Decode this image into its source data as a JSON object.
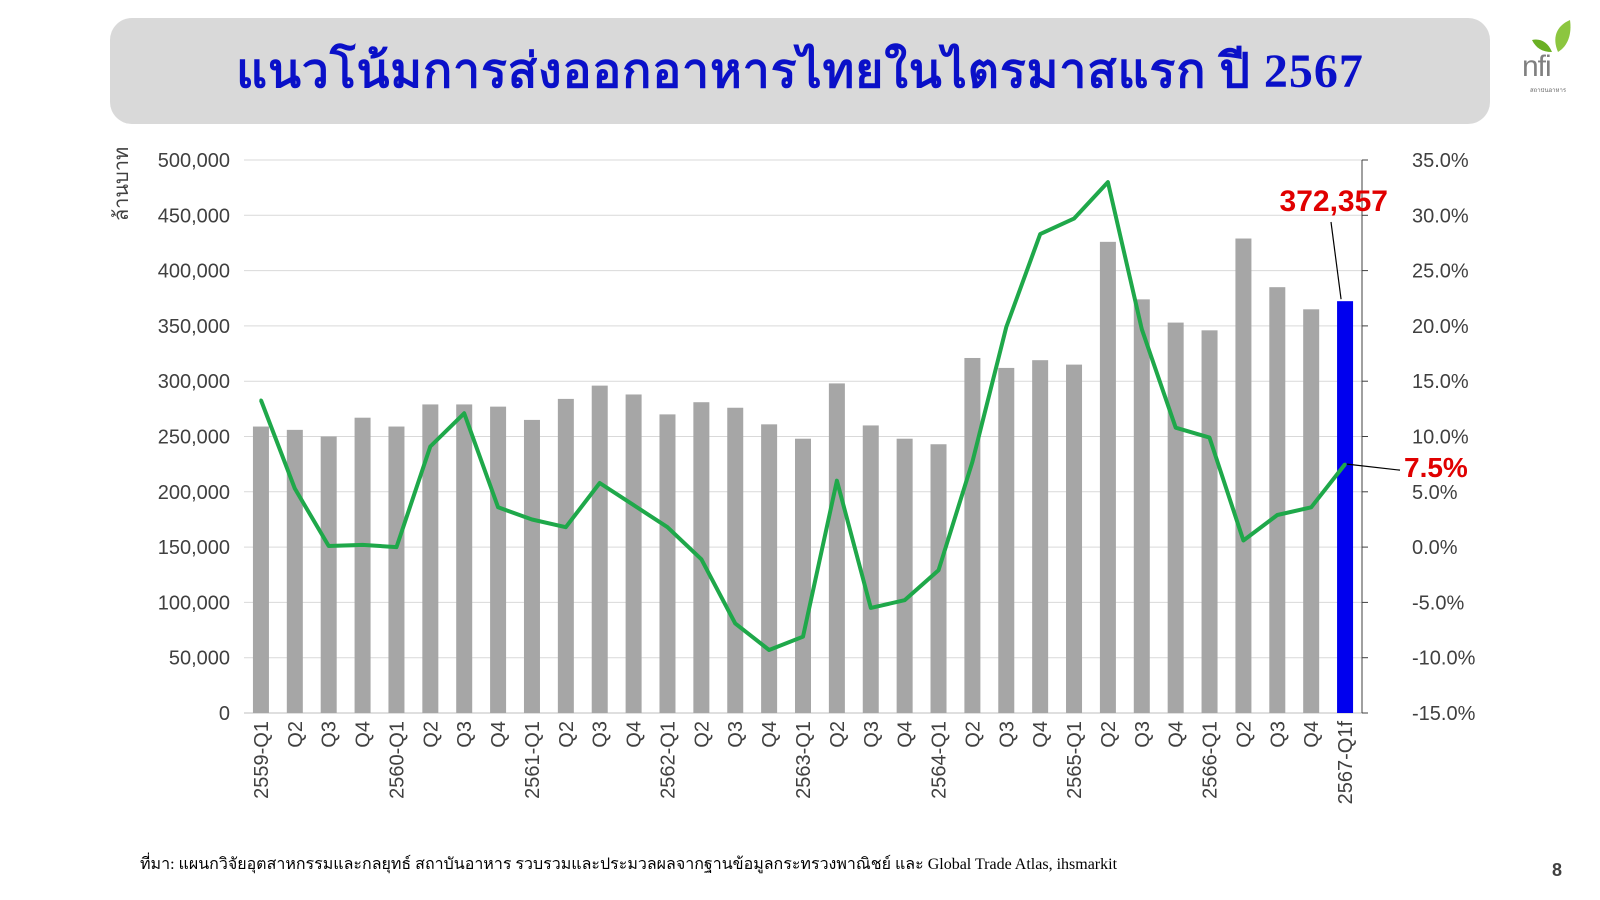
{
  "header": {
    "title": "แนวโน้มการส่งออกอาหารไทยในไตรมาสแรก ปี 2567"
  },
  "logo": {
    "text": "nfi",
    "subtitle": "สถาบันอาหาร"
  },
  "footer": {
    "source": "ที่มา: แผนกวิจัยอุตสาหกรรมและกลยุทธ์ สถาบันอาหาร รวบรวมและประมวลผลจากฐานข้อมูลกระทรวงพาณิชย์ และ Global Trade Atlas, ihsmarkit",
    "page_number": "8"
  },
  "colors": {
    "bar": "#a6a6a6",
    "highlight_bar": "#0000ee",
    "line": "#1fa84a",
    "title": "#0a10c8",
    "annotation": "#e00000",
    "header_bg": "#d9d9d9"
  },
  "chart_data": {
    "type": "bar",
    "ylabel": "ล้านบาท",
    "ylim": [
      0,
      500000
    ],
    "y2lim": [
      -15,
      35
    ],
    "y_ticks": [
      "0",
      "50,000",
      "100,000",
      "150,000",
      "200,000",
      "250,000",
      "300,000",
      "350,000",
      "400,000",
      "450,000",
      "500,000"
    ],
    "y2_ticks": [
      "-15.0%",
      "-10.0%",
      "-5.0%",
      "0.0%",
      "5.0%",
      "10.0%",
      "15.0%",
      "20.0%",
      "25.0%",
      "30.0%",
      "35.0%"
    ],
    "categories": [
      "2559-Q1",
      "Q2",
      "Q3",
      "Q4",
      "2560-Q1",
      "Q2",
      "Q3",
      "Q4",
      "2561-Q1",
      "Q2",
      "Q3",
      "Q4",
      "2562-Q1",
      "Q2",
      "Q3",
      "Q4",
      "2563-Q1",
      "Q2",
      "Q3",
      "Q4",
      "2564-Q1",
      "Q2",
      "Q3",
      "Q4",
      "2565-Q1",
      "Q2",
      "Q3",
      "Q4",
      "2566-Q1",
      "Q2",
      "Q3",
      "Q4",
      "2567-Q1f"
    ],
    "series": [
      {
        "type": "bar",
        "axis": "left",
        "values": [
          259000,
          256000,
          250000,
          267000,
          259000,
          279000,
          279000,
          277000,
          265000,
          284000,
          296000,
          288000,
          270000,
          281000,
          276000,
          261000,
          248000,
          298000,
          260000,
          248000,
          243000,
          321000,
          312000,
          319000,
          315000,
          426000,
          374000,
          353000,
          346000,
          429000,
          385000,
          365000,
          372357
        ],
        "highlight_index": 32
      },
      {
        "type": "line",
        "axis": "right",
        "values": [
          13.3,
          5.3,
          0.1,
          0.2,
          0.0,
          9.1,
          12.1,
          3.6,
          2.5,
          1.8,
          5.8,
          3.8,
          1.8,
          -1.1,
          -6.9,
          -9.3,
          -8.1,
          6.0,
          -5.5,
          -4.8,
          -2.1,
          7.7,
          19.9,
          28.3,
          29.7,
          33.0,
          19.7,
          10.8,
          9.9,
          0.6,
          2.9,
          3.6,
          7.5
        ]
      }
    ],
    "annotations": [
      {
        "text": "372,357",
        "target": "bar",
        "index": 32
      },
      {
        "text": "7.5%",
        "target": "line",
        "index": 32
      }
    ],
    "grid": true
  }
}
